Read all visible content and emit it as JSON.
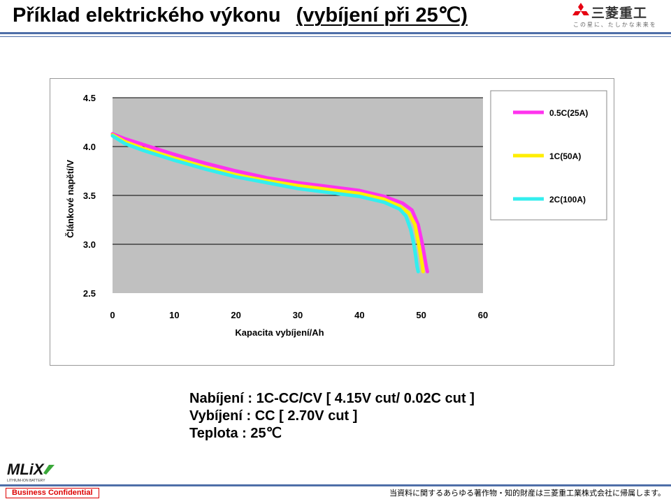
{
  "header": {
    "title": "Příklad elektrického výkonu",
    "title_suffix": "(vybíjení při 25℃)",
    "logo_brand": "三菱重工",
    "logo_slogan": "この星に、たしかな未来を"
  },
  "notes": {
    "charge": "Nabíjení : 1C-CC/CV [ 4.15V cut/ 0.02C cut ]",
    "discharge": "Vybíjení : CC [ 2.70V cut ]",
    "temperature": "Teplota : 25℃"
  },
  "footer": {
    "logo_text": "MLiX",
    "logo_subtext": "LITHIUM-ION BATTERY",
    "confidential": "Business Confidential",
    "copyright": "当資料に関するあらゆる著作物・知的財産は三菱重工業株式会社に帰属します。"
  },
  "colors": {
    "rule": "#4f6fa8",
    "plot_bg": "#c0c0c0",
    "series_05c": "#ff33ee",
    "series_1c": "#ffee00",
    "series_2c": "#33eeee"
  },
  "chart_data": {
    "type": "line",
    "title": "",
    "xlabel": "Kapacita vybíjení/Ah",
    "ylabel": "Článkové napětí/V",
    "xlim": [
      0,
      60
    ],
    "ylim": [
      2.5,
      4.5
    ],
    "xticks": [
      0,
      10,
      20,
      30,
      40,
      50,
      60
    ],
    "yticks": [
      4.5,
      4.0,
      3.5,
      3.0,
      2.5
    ],
    "xtick_labels": [
      "0",
      "10",
      "20",
      "30",
      "40",
      "50",
      "60"
    ],
    "ytick_labels": [
      "4.5",
      "4.0",
      "3.5",
      "3.0",
      "2.5"
    ],
    "grid": "horizontal",
    "legend_position": "right",
    "series": [
      {
        "name": "0.5C(25A)",
        "color": "#ff33ee",
        "x": [
          0,
          2,
          5,
          10,
          15,
          20,
          25,
          30,
          35,
          40,
          44,
          47,
          48.5,
          49.5,
          50.2,
          50.6,
          50.8,
          51
        ],
        "y": [
          4.13,
          4.08,
          4.02,
          3.92,
          3.83,
          3.75,
          3.68,
          3.63,
          3.59,
          3.55,
          3.49,
          3.42,
          3.35,
          3.2,
          3.0,
          2.85,
          2.78,
          2.72
        ]
      },
      {
        "name": "1C(50A)",
        "color": "#ffee00",
        "x": [
          0,
          2,
          5,
          10,
          15,
          20,
          25,
          30,
          35,
          40,
          44,
          46.5,
          48,
          49,
          49.6,
          50,
          50.2,
          50.3
        ],
        "y": [
          4.12,
          4.05,
          3.98,
          3.88,
          3.79,
          3.71,
          3.65,
          3.6,
          3.56,
          3.52,
          3.46,
          3.39,
          3.32,
          3.2,
          3.0,
          2.85,
          2.78,
          2.72
        ]
      },
      {
        "name": "2C(100A)",
        "color": "#33eeee",
        "x": [
          0,
          2,
          5,
          10,
          15,
          20,
          25,
          30,
          35,
          40,
          44,
          46.5,
          47.5,
          48.3,
          48.8,
          49.1,
          49.3,
          49.5
        ],
        "y": [
          4.11,
          4.03,
          3.96,
          3.86,
          3.77,
          3.69,
          3.63,
          3.57,
          3.53,
          3.49,
          3.43,
          3.36,
          3.29,
          3.15,
          3.0,
          2.88,
          2.78,
          2.72
        ]
      }
    ]
  }
}
